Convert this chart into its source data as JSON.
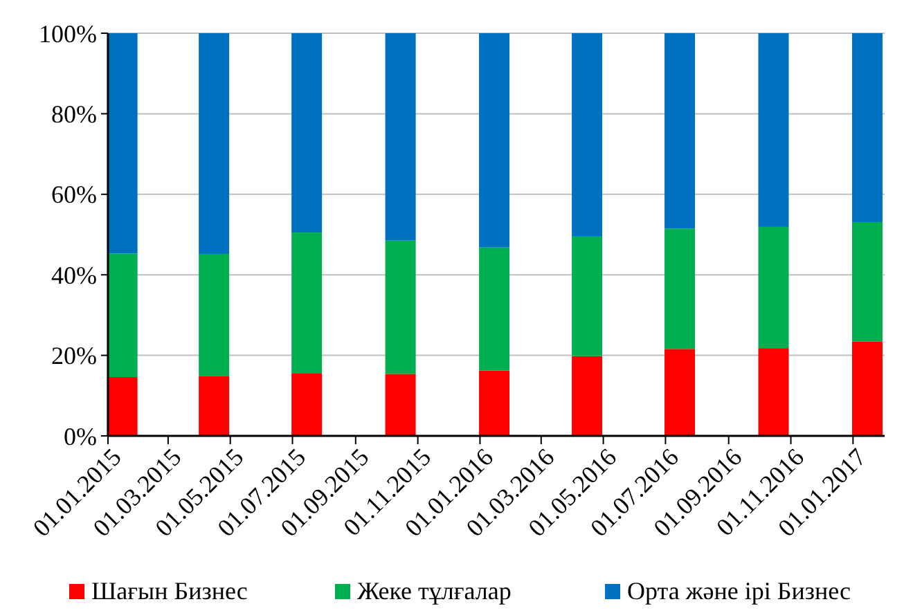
{
  "chart_data": {
    "type": "bar",
    "stacked": true,
    "x": [
      "2015-01-15",
      "2015-04-15",
      "2015-07-15",
      "2015-10-15",
      "2016-01-15",
      "2016-04-15",
      "2016-07-15",
      "2016-10-15",
      "2017-01-15"
    ],
    "series": [
      {
        "name": "Шағын Бизнес",
        "color": "#ff0000",
        "values": [
          14.6,
          14.9,
          15.6,
          15.4,
          16.2,
          19.8,
          21.6,
          21.8,
          23.4
        ]
      },
      {
        "name": "Жеке тұлғалар",
        "color": "#00b050",
        "values": [
          30.7,
          30.3,
          34.9,
          33.1,
          30.6,
          29.7,
          29.9,
          30.1,
          29.7
        ]
      },
      {
        "name": "Орта және ірі Бизнес",
        "color": "#0070c0",
        "values": [
          54.7,
          54.8,
          49.5,
          51.5,
          53.2,
          50.5,
          48.5,
          48.1,
          46.9
        ]
      }
    ],
    "xlim": [
      "2015-01-01",
      "2017-02-01"
    ],
    "xticks": [
      {
        "value": "2015-01-01",
        "label": "01.01.2015"
      },
      {
        "value": "2015-03-01",
        "label": "01.03.2015"
      },
      {
        "value": "2015-05-01",
        "label": "01.05.2015"
      },
      {
        "value": "2015-07-01",
        "label": "01.07.2015"
      },
      {
        "value": "2015-09-01",
        "label": "01.09.2015"
      },
      {
        "value": "2015-11-01",
        "label": "01.11.2015"
      },
      {
        "value": "2016-01-01",
        "label": "01.01.2016"
      },
      {
        "value": "2016-03-01",
        "label": "01.03.2016"
      },
      {
        "value": "2016-05-01",
        "label": "01.05.2016"
      },
      {
        "value": "2016-07-01",
        "label": "01.07.2016"
      },
      {
        "value": "2016-09-01",
        "label": "01.09.2016"
      },
      {
        "value": "2016-11-01",
        "label": "01.11.2016"
      },
      {
        "value": "2017-01-01",
        "label": "01.01.2017"
      }
    ],
    "ylim": [
      0,
      100
    ],
    "yticks": [
      {
        "value": 0,
        "label": "0%"
      },
      {
        "value": 20,
        "label": "20%"
      },
      {
        "value": 40,
        "label": "40%"
      },
      {
        "value": 60,
        "label": "60%"
      },
      {
        "value": 80,
        "label": "80%"
      },
      {
        "value": 100,
        "label": "100%"
      }
    ],
    "grid": "y",
    "legend": "bottom"
  }
}
